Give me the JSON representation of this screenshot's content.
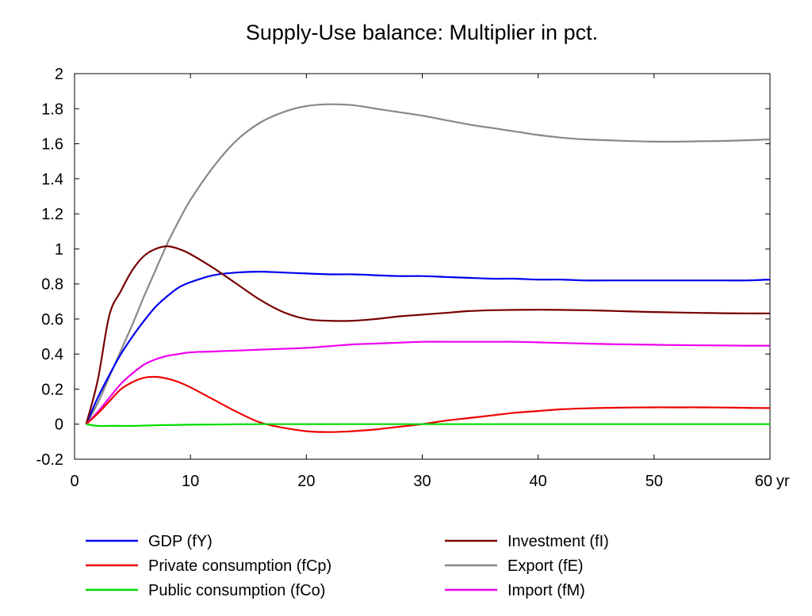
{
  "chart_data": {
    "type": "line",
    "title": "Supply-Use balance: Multiplier in pct.",
    "xlabel": "",
    "ylabel": "",
    "x_unit": "yr",
    "xlim": [
      0,
      60
    ],
    "ylim": [
      -0.2,
      2
    ],
    "x_ticks": [
      "0",
      "10",
      "20",
      "30",
      "40",
      "50",
      "60"
    ],
    "x_tick_values": [
      0,
      10,
      20,
      30,
      40,
      50,
      60
    ],
    "y_ticks": [
      "-0.2",
      "0",
      "0.2",
      "0.4",
      "0.6",
      "0.8",
      "1",
      "1.2",
      "1.4",
      "1.6",
      "1.8",
      "2"
    ],
    "y_tick_values": [
      -0.2,
      0,
      0.2,
      0.4,
      0.6,
      0.8,
      1,
      1.2,
      1.4,
      1.6,
      1.8,
      2
    ],
    "grid": false,
    "legend_position": "bottom",
    "x": [
      1,
      2,
      3,
      4,
      5,
      6,
      7,
      8,
      9,
      10,
      12,
      14,
      16,
      18,
      20,
      22,
      24,
      26,
      28,
      30,
      32,
      34,
      36,
      38,
      40,
      42,
      44,
      46,
      48,
      50,
      52,
      54,
      56,
      58,
      60
    ],
    "series": [
      {
        "name": "GDP (fY)",
        "color": "#0000ee",
        "values": [
          0,
          0.15,
          0.28,
          0.4,
          0.5,
          0.59,
          0.67,
          0.73,
          0.78,
          0.81,
          0.85,
          0.865,
          0.87,
          0.865,
          0.86,
          0.855,
          0.855,
          0.85,
          0.845,
          0.845,
          0.84,
          0.835,
          0.83,
          0.83,
          0.825,
          0.825,
          0.82,
          0.82,
          0.82,
          0.82,
          0.82,
          0.82,
          0.82,
          0.82,
          0.825
        ]
      },
      {
        "name": "Private consumption (fCp)",
        "color": "#ee0000",
        "values": [
          0,
          0.06,
          0.13,
          0.2,
          0.24,
          0.265,
          0.27,
          0.26,
          0.24,
          0.21,
          0.14,
          0.07,
          0.01,
          -0.02,
          -0.04,
          -0.045,
          -0.04,
          -0.03,
          -0.015,
          0.0,
          0.02,
          0.035,
          0.05,
          0.065,
          0.075,
          0.085,
          0.09,
          0.093,
          0.095,
          0.096,
          0.096,
          0.096,
          0.095,
          0.093,
          0.092
        ]
      },
      {
        "name": "Public consumption (fCo)",
        "color": "#00dd00",
        "values": [
          0,
          -0.01,
          -0.01,
          -0.01,
          -0.01,
          -0.008,
          -0.006,
          -0.005,
          -0.004,
          -0.003,
          -0.002,
          -0.001,
          0,
          0,
          0,
          0,
          0,
          0,
          0,
          0,
          0,
          0,
          0,
          0,
          0,
          0,
          0,
          0,
          0,
          0,
          0,
          0,
          0,
          0,
          0
        ]
      },
      {
        "name": "Investment (fI)",
        "color": "#770000",
        "values": [
          0,
          0.25,
          0.62,
          0.76,
          0.88,
          0.96,
          1.0,
          1.015,
          1.0,
          0.97,
          0.89,
          0.8,
          0.71,
          0.64,
          0.6,
          0.59,
          0.59,
          0.6,
          0.615,
          0.625,
          0.635,
          0.645,
          0.65,
          0.652,
          0.653,
          0.652,
          0.65,
          0.647,
          0.643,
          0.64,
          0.637,
          0.635,
          0.633,
          0.632,
          0.632
        ]
      },
      {
        "name": "Export (fE)",
        "color": "#888888",
        "values": [
          0,
          0.12,
          0.27,
          0.42,
          0.57,
          0.73,
          0.88,
          1.03,
          1.16,
          1.28,
          1.47,
          1.62,
          1.72,
          1.78,
          1.815,
          1.825,
          1.82,
          1.8,
          1.78,
          1.76,
          1.735,
          1.71,
          1.69,
          1.67,
          1.65,
          1.635,
          1.625,
          1.62,
          1.615,
          1.612,
          1.612,
          1.614,
          1.616,
          1.62,
          1.625
        ]
      },
      {
        "name": "Import (fM)",
        "color": "#ee00ee",
        "values": [
          0,
          0.07,
          0.15,
          0.23,
          0.29,
          0.34,
          0.37,
          0.39,
          0.4,
          0.41,
          0.415,
          0.42,
          0.425,
          0.43,
          0.435,
          0.445,
          0.455,
          0.46,
          0.465,
          0.47,
          0.47,
          0.47,
          0.47,
          0.47,
          0.467,
          0.463,
          0.46,
          0.457,
          0.455,
          0.453,
          0.451,
          0.45,
          0.449,
          0.448,
          0.448
        ]
      }
    ]
  }
}
